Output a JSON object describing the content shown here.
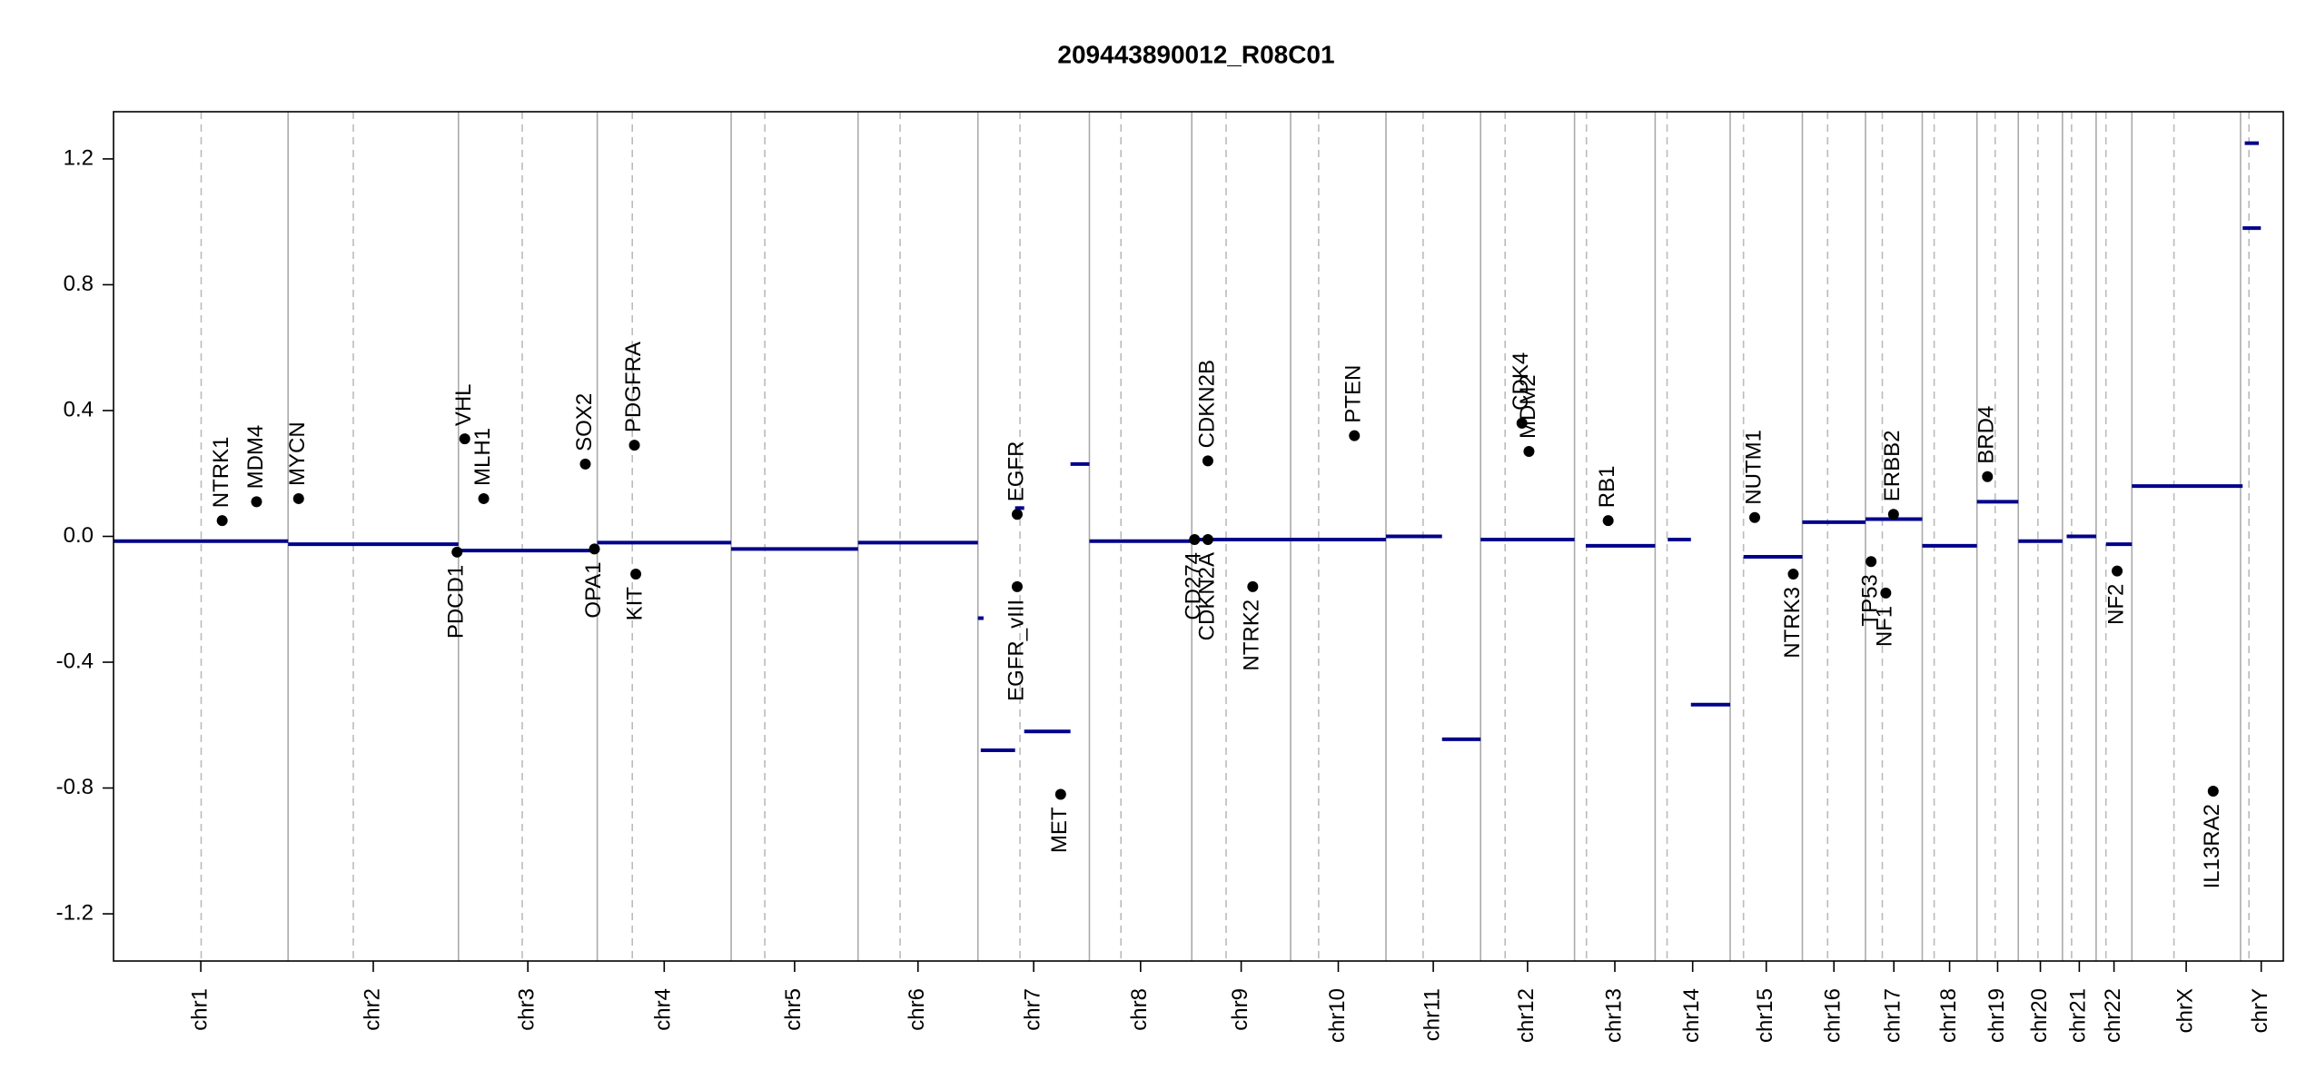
{
  "chart_data": {
    "type": "cnv",
    "title": "209443890012_R08C01",
    "xlim": [
      0,
      3095
    ],
    "ylim": [
      -1.35,
      1.35
    ],
    "yticks": [
      1.2,
      0.8,
      0.4,
      {
        "value": 0,
        "label": "0.0"
      },
      -0.4,
      -0.8,
      -1.2
    ],
    "segment_color": "#00008b",
    "gene_color": "#000000",
    "chromosomes": [
      {
        "name": "chr1",
        "start": 0,
        "end": 249,
        "centromere": 125
      },
      {
        "name": "chr2",
        "start": 249,
        "end": 492,
        "centromere": 342
      },
      {
        "name": "chr3",
        "start": 492,
        "end": 690,
        "centromere": 583
      },
      {
        "name": "chr4",
        "start": 690,
        "end": 881,
        "centromere": 740
      },
      {
        "name": "chr5",
        "start": 881,
        "end": 1062,
        "centromere": 929
      },
      {
        "name": "chr6",
        "start": 1062,
        "end": 1233,
        "centromere": 1122
      },
      {
        "name": "chr7",
        "start": 1233,
        "end": 1392,
        "centromere": 1293
      },
      {
        "name": "chr8",
        "start": 1392,
        "end": 1538,
        "centromere": 1437
      },
      {
        "name": "chr9",
        "start": 1538,
        "end": 1679,
        "centromere": 1587
      },
      {
        "name": "chr10",
        "start": 1679,
        "end": 1815,
        "centromere": 1719
      },
      {
        "name": "chr11",
        "start": 1815,
        "end": 1950,
        "centromere": 1868
      },
      {
        "name": "chr12",
        "start": 1950,
        "end": 2084,
        "centromere": 1985
      },
      {
        "name": "chr13",
        "start": 2084,
        "end": 2199,
        "centromere": 2101
      },
      {
        "name": "chr14",
        "start": 2199,
        "end": 2306,
        "centromere": 2216
      },
      {
        "name": "chr15",
        "start": 2306,
        "end": 2409,
        "centromere": 2325
      },
      {
        "name": "chr16",
        "start": 2409,
        "end": 2499,
        "centromere": 2445
      },
      {
        "name": "chr17",
        "start": 2499,
        "end": 2580,
        "centromere": 2523
      },
      {
        "name": "chr18",
        "start": 2580,
        "end": 2658,
        "centromere": 2597
      },
      {
        "name": "chr19",
        "start": 2658,
        "end": 2717,
        "centromere": 2684
      },
      {
        "name": "chr20",
        "start": 2717,
        "end": 2780,
        "centromere": 2745
      },
      {
        "name": "chr21",
        "start": 2780,
        "end": 2828,
        "centromere": 2793
      },
      {
        "name": "chr22",
        "start": 2828,
        "end": 2879,
        "centromere": 2842
      },
      {
        "name": "chrX",
        "start": 2879,
        "end": 3034,
        "centromere": 2939
      },
      {
        "name": "chrY",
        "start": 3034,
        "end": 3093,
        "centromere": 3046
      }
    ],
    "segments": [
      {
        "start": 0,
        "end": 249,
        "value": -0.015
      },
      {
        "start": 249,
        "end": 492,
        "value": -0.025
      },
      {
        "start": 492,
        "end": 690,
        "value": -0.045
      },
      {
        "start": 690,
        "end": 881,
        "value": -0.02
      },
      {
        "start": 881,
        "end": 1062,
        "value": -0.04
      },
      {
        "start": 1062,
        "end": 1233,
        "value": -0.02
      },
      {
        "start": 1233,
        "end": 1241,
        "value": -0.26
      },
      {
        "start": 1237,
        "end": 1286,
        "value": -0.68
      },
      {
        "start": 1286,
        "end": 1299,
        "value": 0.09
      },
      {
        "start": 1299,
        "end": 1365,
        "value": -0.62
      },
      {
        "start": 1365,
        "end": 1392,
        "value": 0.23
      },
      {
        "start": 1392,
        "end": 1542,
        "value": -0.015
      },
      {
        "start": 1542,
        "end": 1679,
        "value": -0.01
      },
      {
        "start": 1679,
        "end": 1815,
        "value": -0.01
      },
      {
        "start": 1815,
        "end": 1895,
        "value": 0.0
      },
      {
        "start": 1895,
        "end": 1950,
        "value": -0.645
      },
      {
        "start": 1950,
        "end": 2084,
        "value": -0.01
      },
      {
        "start": 2100,
        "end": 2199,
        "value": -0.03
      },
      {
        "start": 2217,
        "end": 2250,
        "value": -0.01
      },
      {
        "start": 2250,
        "end": 2306,
        "value": -0.535
      },
      {
        "start": 2325,
        "end": 2409,
        "value": -0.065
      },
      {
        "start": 2409,
        "end": 2499,
        "value": 0.045
      },
      {
        "start": 2499,
        "end": 2580,
        "value": 0.055
      },
      {
        "start": 2580,
        "end": 2658,
        "value": -0.03
      },
      {
        "start": 2658,
        "end": 2717,
        "value": 0.11
      },
      {
        "start": 2717,
        "end": 2780,
        "value": -0.015
      },
      {
        "start": 2786,
        "end": 2828,
        "value": 0.0
      },
      {
        "start": 2842,
        "end": 2879,
        "value": -0.025
      },
      {
        "start": 2879,
        "end": 3037,
        "value": 0.16
      },
      {
        "start": 3037,
        "end": 3063,
        "value": 0.98
      },
      {
        "start": 3040,
        "end": 3060,
        "value": 1.25
      }
    ],
    "genes": [
      {
        "name": "NTRK1",
        "x": 155,
        "value": 0.05
      },
      {
        "name": "MDM4",
        "x": 204,
        "value": 0.11
      },
      {
        "name": "MYCN",
        "x": 264,
        "value": 0.12
      },
      {
        "name": "PDCD1",
        "x": 490,
        "value": -0.05
      },
      {
        "name": "VHL",
        "x": 501,
        "value": 0.31
      },
      {
        "name": "MLH1",
        "x": 528,
        "value": 0.12
      },
      {
        "name": "SOX2",
        "x": 673,
        "value": 0.23
      },
      {
        "name": "OPA1",
        "x": 686,
        "value": -0.04
      },
      {
        "name": "PDGFRA",
        "x": 743,
        "value": 0.29
      },
      {
        "name": "KIT",
        "x": 745,
        "value": -0.12
      },
      {
        "name": "EGFR",
        "x": 1289,
        "value": 0.07
      },
      {
        "name": "EGFR_vIII",
        "x": 1289,
        "value": -0.16
      },
      {
        "name": "MET",
        "x": 1351,
        "value": -0.82
      },
      {
        "name": "CD274",
        "x": 1542,
        "value": -0.01
      },
      {
        "name": "CDKN2A",
        "x": 1561,
        "value": -0.01
      },
      {
        "name": "CDKN2B",
        "x": 1561,
        "value": 0.24
      },
      {
        "name": "NTRK2",
        "x": 1625,
        "value": -0.16
      },
      {
        "name": "PTEN",
        "x": 1770,
        "value": 0.32
      },
      {
        "name": "CDK4",
        "x": 2009,
        "value": 0.36
      },
      {
        "name": "MDM2",
        "x": 2019,
        "value": 0.27
      },
      {
        "name": "RB1",
        "x": 2132,
        "value": 0.05
      },
      {
        "name": "NUTM1",
        "x": 2341,
        "value": 0.06
      },
      {
        "name": "NTRK3",
        "x": 2396,
        "value": -0.12
      },
      {
        "name": "TP53",
        "x": 2507,
        "value": -0.08
      },
      {
        "name": "NF1",
        "x": 2528,
        "value": -0.18
      },
      {
        "name": "ERBB2",
        "x": 2539,
        "value": 0.07
      },
      {
        "name": "BRD4",
        "x": 2673,
        "value": 0.19
      },
      {
        "name": "NF2",
        "x": 2858,
        "value": -0.11
      },
      {
        "name": "IL13RA2",
        "x": 2995,
        "value": -0.81
      }
    ]
  }
}
